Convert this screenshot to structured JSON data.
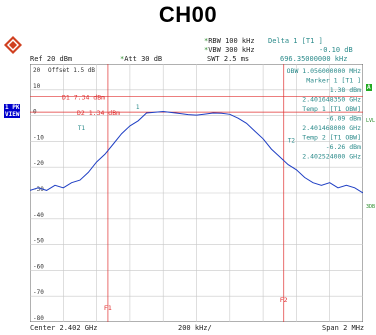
{
  "title": "CH00",
  "header": {
    "rbw": "RBW 100 kHz",
    "vbw": "VBW 300 kHz",
    "swt": "SWT 2.5 ms",
    "ref": "Ref  20 dBm",
    "att": "Att  30 dB",
    "delta_label": "Delta 1 [T1 ]",
    "delta_value": "-0.10 dB",
    "delta_freq": "696.35000000 kHz"
  },
  "grid_header": {
    "offset_left": "20",
    "offset": "Offset  1.5 dB"
  },
  "side": {
    "left_box1": "1 PK",
    "left_box2": "VIEW",
    "right_box": "A",
    "lvl": "LVL",
    "tdf": "3DB"
  },
  "marker_info": [
    "OBW   1.056000000 MHz",
    "Marker 1 [T1 ]",
    "1.38 dBm",
    "2.401648350 GHz",
    "Temp 1 [T1 OBW]",
    "-6.09 dBm",
    "2.401468000 GHz",
    "Temp 2 [T1 OBW]",
    "-6.26 dBm",
    "2.402524000 GHz"
  ],
  "display_lines": {
    "d1": "D1 7.34 dBm",
    "d2": "D2 1.34 dBm"
  },
  "y_ticks": [
    "10",
    "0",
    "-10",
    "-20",
    "-30",
    "-40",
    "-50",
    "-60",
    "-70",
    "-80"
  ],
  "markers": {
    "m1": "1",
    "t1": "T1",
    "t2": "T2",
    "f1": "F1",
    "f2": "F2"
  },
  "footer": {
    "center": "Center 2.402 GHz",
    "span_div": "200 kHz/",
    "span": "Span 2 MHz"
  },
  "colors": {
    "trace": "#1f3fc4",
    "red": "#e03030",
    "teal": "#2a8a8a",
    "grid": "#c8c8c8"
  },
  "chart_data": {
    "type": "line",
    "x_range_mhz": [
      2401.0,
      2403.0
    ],
    "ylim": [
      -80,
      20
    ],
    "series": [
      {
        "values_x_mhz": [
          2401.0,
          2401.05,
          2401.1,
          2401.15,
          2401.2,
          2401.25,
          2401.3,
          2401.35,
          2401.4,
          2401.45,
          2401.5,
          2401.55,
          2401.6,
          2401.65,
          2401.7,
          2401.75,
          2401.8,
          2401.85,
          2401.9,
          2401.95,
          2402.0,
          2402.05,
          2402.1,
          2402.15,
          2402.2,
          2402.25,
          2402.3,
          2402.35,
          2402.4,
          2402.45,
          2402.5,
          2402.55,
          2402.6,
          2402.65,
          2402.7,
          2402.75,
          2402.8,
          2402.85,
          2402.9,
          2402.95,
          2403.0
        ],
        "values_dbm": [
          -29,
          -28,
          -29,
          -27,
          -28,
          -26,
          -25,
          -22,
          -18,
          -15,
          -11,
          -7,
          -4,
          -2,
          1,
          1.3,
          1.6,
          1.2,
          0.8,
          0.4,
          0.2,
          0.6,
          1.0,
          0.9,
          0.5,
          -1,
          -3,
          -6,
          -9,
          -13,
          -16,
          -19,
          -21,
          -24,
          -26,
          -27,
          -26,
          -28,
          -27,
          -28,
          -30
        ]
      }
    ]
  }
}
